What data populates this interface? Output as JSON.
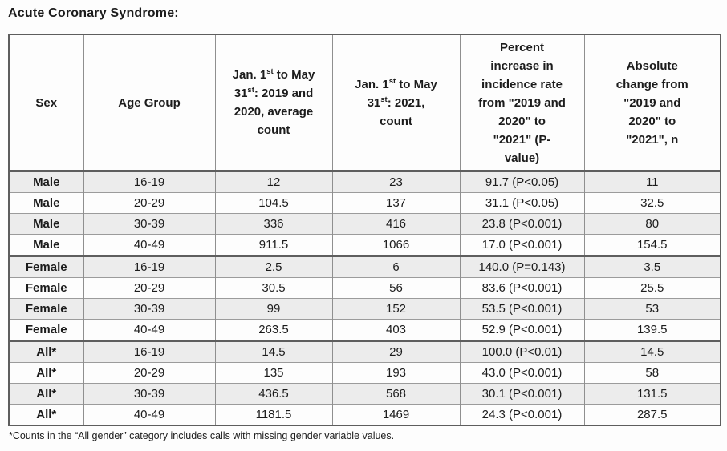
{
  "title": "Acute Coronary Syndrome:",
  "table": {
    "columns": [
      {
        "label": "Sex"
      },
      {
        "label": "Age Group"
      },
      {
        "l1a": "Jan. 1",
        "l1sup": "st",
        "l1b": " to May",
        "l2a": "31",
        "l2sup": "st",
        "l2b": ": 2019 and",
        "l3": "2020, average",
        "l4": "count"
      },
      {
        "l1a": "Jan. 1",
        "l1sup": "st",
        "l1b": " to May",
        "l2a": "31",
        "l2sup": "st",
        "l2b": ": 2021,",
        "l3": "count"
      },
      {
        "lines": [
          "Percent",
          "increase in",
          "incidence rate",
          "from \"2019 and",
          "2020\" to",
          "\"2021\" (P-",
          "value)"
        ]
      },
      {
        "lines": [
          "Absolute",
          "change from",
          "\"2019 and",
          "2020\" to",
          "\"2021\", n"
        ]
      }
    ],
    "rows": [
      [
        "Male",
        "16-19",
        "12",
        "23",
        "91.7 (P<0.05)",
        "11"
      ],
      [
        "Male",
        "20-29",
        "104.5",
        "137",
        "31.1 (P<0.05)",
        "32.5"
      ],
      [
        "Male",
        "30-39",
        "336",
        "416",
        "23.8 (P<0.001)",
        "80"
      ],
      [
        "Male",
        "40-49",
        "911.5",
        "1066",
        "17.0 (P<0.001)",
        "154.5"
      ],
      [
        "Female",
        "16-19",
        "2.5",
        "6",
        "140.0 (P=0.143)",
        "3.5"
      ],
      [
        "Female",
        "20-29",
        "30.5",
        "56",
        "83.6 (P<0.001)",
        "25.5"
      ],
      [
        "Female",
        "30-39",
        "99",
        "152",
        "53.5 (P<0.001)",
        "53"
      ],
      [
        "Female",
        "40-49",
        "263.5",
        "403",
        "52.9 (P<0.001)",
        "139.5"
      ],
      [
        "All*",
        "16-19",
        "14.5",
        "29",
        "100.0 (P<0.01)",
        "14.5"
      ],
      [
        "All*",
        "20-29",
        "135",
        "193",
        "43.0 (P<0.001)",
        "58"
      ],
      [
        "All*",
        "30-39",
        "436.5",
        "568",
        "30.1 (P<0.001)",
        "131.5"
      ],
      [
        "All*",
        "40-49",
        "1181.5",
        "1469",
        "24.3 (P<0.001)",
        "287.5"
      ]
    ]
  },
  "footnote": "*Counts in the “All gender” category includes calls with missing gender variable values."
}
